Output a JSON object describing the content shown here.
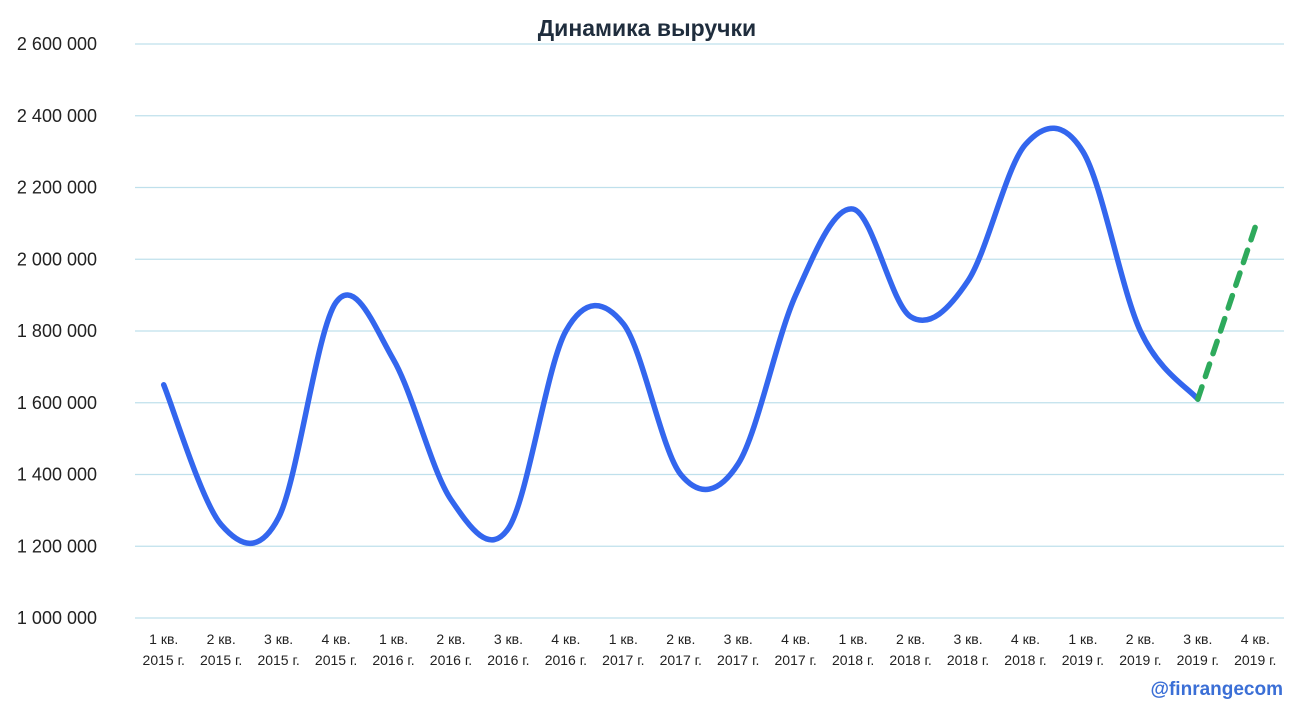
{
  "chart_data": {
    "type": "line",
    "title": "Динамика выручки",
    "xlabel": "",
    "ylabel": "",
    "ylim": [
      1000000,
      2600000
    ],
    "yticks": [
      1000000,
      1200000,
      1400000,
      1600000,
      1800000,
      2000000,
      2200000,
      2400000,
      2600000
    ],
    "ytick_labels": [
      "1 000 000",
      "1 200 000",
      "1 400 000",
      "1 600 000",
      "1 800 000",
      "2 000 000",
      "2 200 000",
      "2 400 000",
      "2 600 000"
    ],
    "grid": true,
    "legend": "none",
    "categories": [
      [
        "1 кв.",
        "2015 г."
      ],
      [
        "2 кв.",
        "2015 г."
      ],
      [
        "3 кв.",
        "2015 г."
      ],
      [
        "4 кв.",
        "2015 г."
      ],
      [
        "1 кв.",
        "2016 г."
      ],
      [
        "2 кв.",
        "2016 г."
      ],
      [
        "3 кв.",
        "2016 г."
      ],
      [
        "4 кв.",
        "2016 г."
      ],
      [
        "1 кв.",
        "2017 г."
      ],
      [
        "2 кв.",
        "2017 г."
      ],
      [
        "3 кв.",
        "2017 г."
      ],
      [
        "4 кв.",
        "2017 г."
      ],
      [
        "1 кв.",
        "2018 г."
      ],
      [
        "2 кв.",
        "2018 г."
      ],
      [
        "3 кв.",
        "2018 г."
      ],
      [
        "4 кв.",
        "2018 г."
      ],
      [
        "1 кв.",
        "2019 г."
      ],
      [
        "2 кв.",
        "2019 г."
      ],
      [
        "3 кв.",
        "2019 г."
      ],
      [
        "4 кв.",
        "2019 г."
      ]
    ],
    "series": [
      {
        "style": "solid",
        "color": "#3366ee",
        "values": [
          1650000,
          1260000,
          1280000,
          1880000,
          1720000,
          1330000,
          1250000,
          1800000,
          1820000,
          1400000,
          1430000,
          1900000,
          2140000,
          1840000,
          1940000,
          2320000,
          2300000,
          1800000,
          1610000,
          null
        ]
      },
      {
        "style": "dashed",
        "color": "#2eaa5c",
        "values": [
          null,
          null,
          null,
          null,
          null,
          null,
          null,
          null,
          null,
          null,
          null,
          null,
          null,
          null,
          null,
          null,
          null,
          null,
          1610000,
          2090000
        ]
      }
    ]
  },
  "watermark": "@finrangecom"
}
